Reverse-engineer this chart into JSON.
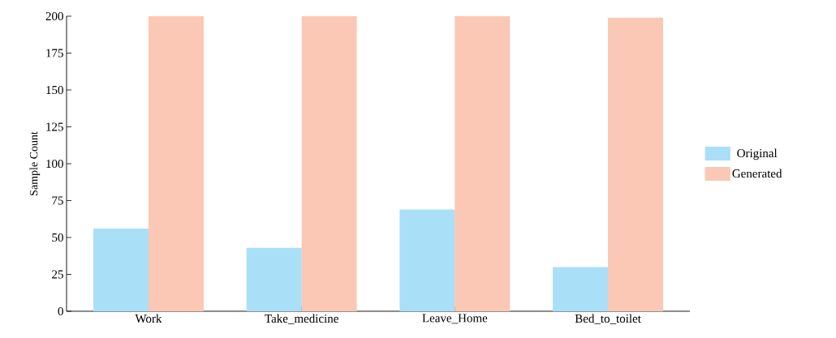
{
  "chart_data": {
    "type": "bar",
    "ylabel": "Sample Count",
    "categories": [
      "Work",
      "Take_medicine",
      "Leave_Home",
      "Bed_to_toilet"
    ],
    "series": [
      {
        "name": "Original",
        "color": "#aadff8",
        "values": [
          56,
          43,
          69,
          30
        ]
      },
      {
        "name": "Generated",
        "color": "#fac8b4",
        "values": [
          200,
          200,
          200,
          199
        ]
      }
    ],
    "ylim": [
      0,
      200
    ],
    "yticks": [
      0,
      25,
      50,
      75,
      100,
      125,
      150,
      175,
      200
    ],
    "grid": false,
    "legend": "right"
  }
}
